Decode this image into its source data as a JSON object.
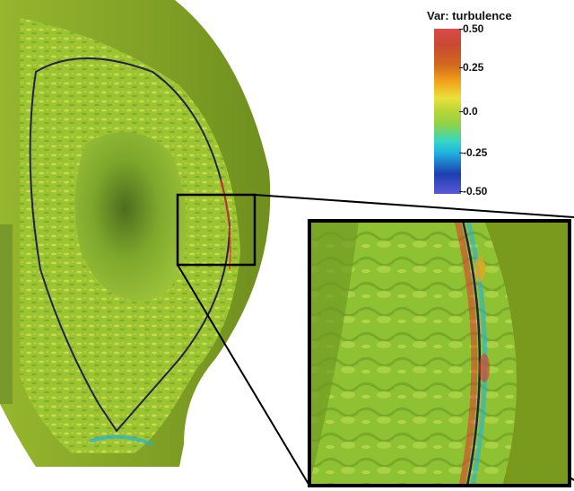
{
  "legend": {
    "title": "Var: turbulence",
    "ticks": [
      "0.50",
      "0.25",
      "0.0",
      "-0.25",
      "-0.50"
    ],
    "colors": {
      "max": "#d94a4a",
      "high": "#f3a21a",
      "mid": "#b8d438",
      "low": "#1fb3e0",
      "min": "#5a58d6"
    }
  },
  "scene": {
    "description_icon": "plasma-cross-section",
    "surface_color": "#8fb52a",
    "shadow_color": "#3f5a1a",
    "frame_color": "#000000"
  }
}
